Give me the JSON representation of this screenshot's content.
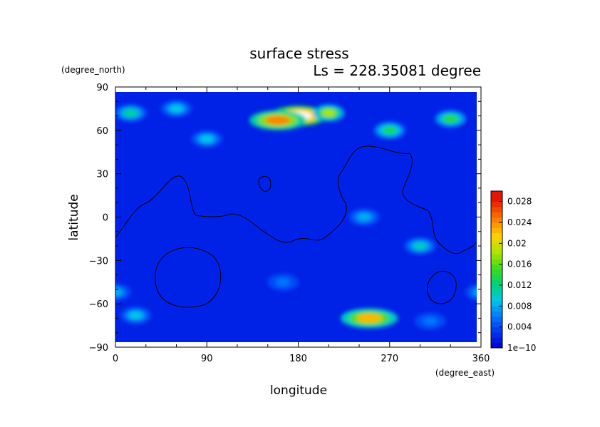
{
  "chart_data": {
    "type": "heatmap",
    "title": "surface stress",
    "subtitle": "Ls = 228.35081 degree",
    "xlabel": "longitude",
    "ylabel": "latitude",
    "x_unit": "(degree_east)",
    "y_unit": "(degree_north)",
    "xlim": [
      0,
      360
    ],
    "ylim": [
      -90,
      90
    ],
    "x_ticks": [
      "0",
      "90",
      "180",
      "270",
      "360"
    ],
    "y_ticks": [
      "90",
      "60",
      "30",
      "0",
      "−30",
      "−60",
      "−90"
    ],
    "x_tick_values": [
      0,
      90,
      180,
      270,
      360
    ],
    "y_tick_values": [
      90,
      60,
      30,
      0,
      -30,
      -60,
      -90
    ],
    "colorbar": {
      "min": 0,
      "max": 0.03,
      "ticks": [
        "1e−10",
        "0.004",
        "0.008",
        "0.012",
        "0.016",
        "0.02",
        "0.024",
        "0.028"
      ],
      "tick_values": [
        0.0,
        0.004,
        0.008,
        0.012,
        0.016,
        0.02,
        0.024,
        0.028
      ]
    },
    "hotspots": [
      {
        "lon": 180,
        "lat": 70,
        "value": 0.03,
        "note": "max (white, above scale)"
      },
      {
        "lon": 160,
        "lat": 67,
        "value": 0.024
      },
      {
        "lon": 210,
        "lat": 72,
        "value": 0.018
      },
      {
        "lon": 15,
        "lat": 72,
        "value": 0.011
      },
      {
        "lon": 60,
        "lat": 75,
        "value": 0.009
      },
      {
        "lon": 330,
        "lat": 68,
        "value": 0.014
      },
      {
        "lon": 270,
        "lat": 60,
        "value": 0.013
      },
      {
        "lon": 90,
        "lat": 54,
        "value": 0.009
      },
      {
        "lon": 250,
        "lat": -70,
        "value": 0.022
      },
      {
        "lon": 20,
        "lat": -68,
        "value": 0.009
      },
      {
        "lon": 0,
        "lat": -52,
        "value": 0.008
      },
      {
        "lon": 360,
        "lat": -52,
        "value": 0.008
      },
      {
        "lon": 300,
        "lat": -20,
        "value": 0.01
      },
      {
        "lon": 245,
        "lat": 0,
        "value": 0.008
      },
      {
        "lon": 165,
        "lat": -45,
        "value": 0.006
      },
      {
        "lon": 310,
        "lat": -72,
        "value": 0.006
      }
    ]
  }
}
